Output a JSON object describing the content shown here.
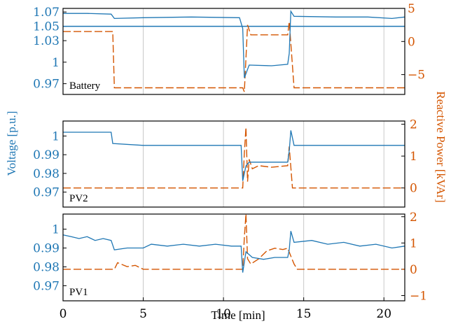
{
  "chart_data": {
    "type": "line",
    "xlabel": "Time [min]",
    "ylabel_left": "Voltage [p.u.]",
    "ylabel_right": "Reactive Power [kVAr]",
    "xlim": [
      0,
      21.3
    ],
    "xticks": [
      "0",
      "5",
      "10",
      "15",
      "20"
    ],
    "grid": true,
    "colors": {
      "voltage": "#1f77b4",
      "reactive": "#d45500"
    },
    "panels": [
      {
        "label": "Battery",
        "ylim_v": [
          0.955,
          1.075
        ],
        "yticks_v": [
          "0.97",
          "1",
          "1.03",
          "1.05",
          "1.07"
        ],
        "ylim_q": [
          -8,
          5
        ],
        "yticks_q": [
          "−5",
          "0",
          "5"
        ],
        "voltage_ref": 1.05,
        "voltage": [
          [
            0,
            1.068
          ],
          [
            1.5,
            1.068
          ],
          [
            3.0,
            1.067
          ],
          [
            3.2,
            1.061
          ],
          [
            5,
            1.062
          ],
          [
            8,
            1.063
          ],
          [
            11.0,
            1.062
          ],
          [
            11.2,
            1.047
          ],
          [
            11.3,
            0.978
          ],
          [
            11.6,
            0.996
          ],
          [
            13.0,
            0.995
          ],
          [
            14.0,
            0.997
          ],
          [
            14.1,
            1.012
          ],
          [
            14.2,
            1.071
          ],
          [
            14.4,
            1.064
          ],
          [
            17,
            1.063
          ],
          [
            19,
            1.063
          ],
          [
            20.5,
            1.061
          ],
          [
            21.3,
            1.063
          ]
        ],
        "reactive": [
          [
            0,
            1.5
          ],
          [
            3.1,
            1.5
          ],
          [
            3.2,
            -7
          ],
          [
            11.2,
            -7
          ],
          [
            11.3,
            -7.6
          ],
          [
            11.5,
            2.5
          ],
          [
            11.7,
            1.0
          ],
          [
            14.0,
            1.0
          ],
          [
            14.1,
            3.0
          ],
          [
            14.4,
            -7
          ],
          [
            21.3,
            -7
          ]
        ]
      },
      {
        "label": "PV2",
        "ylim_v": [
          0.962,
          1.008
        ],
        "yticks_v": [
          "0.97",
          "0.98",
          "0.99",
          "1"
        ],
        "ylim_q": [
          -0.6,
          2.1
        ],
        "yticks_q": [
          "0",
          "1",
          "2"
        ],
        "voltage": [
          [
            0,
            1.002
          ],
          [
            3.0,
            1.002
          ],
          [
            3.1,
            0.996
          ],
          [
            5,
            0.995
          ],
          [
            8,
            0.995
          ],
          [
            11.1,
            0.995
          ],
          [
            11.2,
            0.976
          ],
          [
            11.4,
            0.984
          ],
          [
            11.6,
            0.986
          ],
          [
            14.0,
            0.986
          ],
          [
            14.1,
            0.992
          ],
          [
            14.2,
            1.003
          ],
          [
            14.4,
            0.995
          ],
          [
            17,
            0.995
          ],
          [
            21.3,
            0.995
          ]
        ],
        "reactive": [
          [
            0,
            0
          ],
          [
            11.2,
            0
          ],
          [
            11.3,
            1.1
          ],
          [
            11.4,
            1.9
          ],
          [
            11.5,
            0.2
          ],
          [
            11.6,
            0.9
          ],
          [
            11.8,
            0.6
          ],
          [
            12.2,
            0.7
          ],
          [
            13,
            0.65
          ],
          [
            14.0,
            0.7
          ],
          [
            14.1,
            1.3
          ],
          [
            14.3,
            0
          ],
          [
            21.3,
            0
          ]
        ]
      },
      {
        "label": "PV1",
        "ylim_v": [
          0.962,
          1.008
        ],
        "yticks_v": [
          "0.97",
          "0.98",
          "0.99",
          "1"
        ],
        "ylim_q": [
          -1.2,
          2.1
        ],
        "yticks_q": [
          "−1",
          "0",
          "1",
          "2"
        ],
        "voltage": [
          [
            0,
            0.997
          ],
          [
            0.5,
            0.996
          ],
          [
            1.0,
            0.995
          ],
          [
            1.5,
            0.996
          ],
          [
            2.0,
            0.994
          ],
          [
            2.5,
            0.995
          ],
          [
            3.0,
            0.994
          ],
          [
            3.2,
            0.989
          ],
          [
            4.0,
            0.99
          ],
          [
            5.0,
            0.99
          ],
          [
            5.5,
            0.992
          ],
          [
            6.5,
            0.991
          ],
          [
            7.5,
            0.992
          ],
          [
            8.5,
            0.991
          ],
          [
            9.5,
            0.992
          ],
          [
            10.5,
            0.991
          ],
          [
            11.1,
            0.991
          ],
          [
            11.2,
            0.977
          ],
          [
            11.4,
            0.988
          ],
          [
            11.8,
            0.985
          ],
          [
            12.5,
            0.984
          ],
          [
            13.2,
            0.985
          ],
          [
            14.0,
            0.985
          ],
          [
            14.1,
            0.989
          ],
          [
            14.2,
            0.999
          ],
          [
            14.4,
            0.993
          ],
          [
            15.5,
            0.994
          ],
          [
            16.5,
            0.992
          ],
          [
            17.5,
            0.993
          ],
          [
            18.5,
            0.991
          ],
          [
            19.5,
            0.992
          ],
          [
            20.5,
            0.99
          ],
          [
            21.3,
            0.991
          ]
        ],
        "reactive": [
          [
            0,
            0
          ],
          [
            3.2,
            0
          ],
          [
            3.4,
            0.25
          ],
          [
            4.0,
            0.1
          ],
          [
            4.5,
            0.15
          ],
          [
            5.0,
            0
          ],
          [
            11.2,
            0
          ],
          [
            11.3,
            1.2
          ],
          [
            11.4,
            2.1
          ],
          [
            11.5,
            0.4
          ],
          [
            11.7,
            0.2
          ],
          [
            12.2,
            0.4
          ],
          [
            12.7,
            0.7
          ],
          [
            13.2,
            0.8
          ],
          [
            13.7,
            0.75
          ],
          [
            14.0,
            0.8
          ],
          [
            14.2,
            0.5
          ],
          [
            14.4,
            0.2
          ],
          [
            14.6,
            0
          ],
          [
            21.3,
            0
          ]
        ]
      }
    ]
  }
}
